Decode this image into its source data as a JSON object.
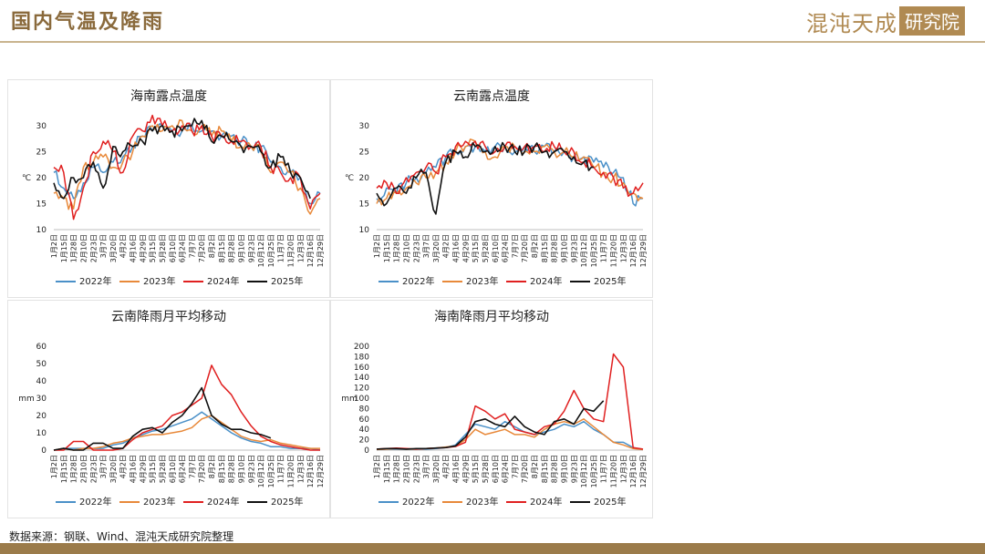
{
  "header": {
    "title": "国内气温及降雨",
    "logo_main": "混沌天成",
    "logo_box": "研究院"
  },
  "footer": {
    "source": "数据来源：钢联、Wind、混沌天成研究院整理"
  },
  "colors": {
    "y2022": "#4a90c8",
    "y2023": "#e8893a",
    "y2024": "#e02020",
    "y2025": "#111111"
  },
  "chart_data": [
    {
      "id": "hainan-dew",
      "type": "line",
      "title": "海南露点温度",
      "ylabel": "℃",
      "ylim": [
        10,
        30
      ],
      "yticks": [
        10,
        15,
        20,
        25,
        30
      ],
      "x": [
        "1月2日",
        "1月15日",
        "1月28日",
        "2月10日",
        "2月23日",
        "3月7日",
        "3月20日",
        "4月2日",
        "4月16日",
        "4月29日",
        "5月15日",
        "5月28日",
        "6月10日",
        "6月24日",
        "7月7日",
        "7月20日",
        "8月2日",
        "8月15日",
        "8月28日",
        "9月10日",
        "9月23日",
        "10月12日",
        "10月25日",
        "11月7日",
        "11月20日",
        "12月3日",
        "12月16日",
        "12月29日"
      ],
      "series": [
        {
          "name": "2022年",
          "values": [
            21,
            18,
            16,
            19,
            22,
            21,
            23,
            24,
            26,
            28,
            29,
            30,
            29,
            29,
            30,
            29,
            29,
            28,
            28,
            27,
            26,
            26,
            23,
            22,
            21,
            20,
            15,
            17
          ]
        },
        {
          "name": "2023年",
          "values": [
            17,
            16,
            14,
            22,
            23,
            24,
            22,
            23,
            25,
            28,
            30,
            29,
            30,
            31,
            29,
            30,
            28,
            29,
            27,
            26,
            26,
            25,
            21,
            23,
            21,
            18,
            13,
            16
          ]
        },
        {
          "name": "2024年",
          "values": [
            22,
            21,
            12,
            18,
            25,
            27,
            25,
            21,
            28,
            29,
            32,
            30,
            29,
            30,
            29,
            30,
            28,
            28,
            27,
            27,
            26,
            26,
            22,
            21,
            20,
            20,
            14,
            17
          ]
        },
        {
          "name": "2025年",
          "values": [
            19,
            16,
            20,
            20,
            23,
            18,
            26,
            25,
            26,
            27,
            29,
            30,
            29,
            29,
            30,
            31,
            27,
            28,
            27,
            26,
            26,
            25,
            22,
            24,
            21,
            20,
            16,
            null
          ]
        }
      ]
    },
    {
      "id": "yunnan-dew",
      "type": "line",
      "title": "云南露点温度",
      "ylabel": "℃",
      "ylim": [
        10,
        30
      ],
      "yticks": [
        10,
        15,
        20,
        25,
        30
      ],
      "x": [
        "1月2日",
        "1月15日",
        "1月28日",
        "2月10日",
        "2月23日",
        "3月7日",
        "3月20日",
        "4月2日",
        "4月16日",
        "4月29日",
        "5月15日",
        "5月28日",
        "6月10日",
        "6月24日",
        "7月7日",
        "7月20日",
        "8月2日",
        "8月15日",
        "8月28日",
        "9月10日",
        "9月23日",
        "10月12日",
        "10月25日",
        "11月7日",
        "11月20日",
        "12月3日",
        "12月16日",
        "12月29日"
      ],
      "series": [
        {
          "name": "2022年",
          "values": [
            16,
            18,
            17,
            19,
            20,
            21,
            22,
            24,
            25,
            26,
            26,
            25,
            26,
            26,
            25,
            26,
            25,
            26,
            25,
            25,
            24,
            24,
            23,
            22,
            21,
            20,
            15,
            16
          ]
        },
        {
          "name": "2023年",
          "values": [
            15,
            16,
            17,
            18,
            19,
            20,
            21,
            23,
            25,
            26,
            27,
            25,
            24,
            26,
            26,
            25,
            25,
            26,
            25,
            25,
            24,
            24,
            22,
            21,
            20,
            19,
            17,
            16
          ]
        },
        {
          "name": "2024年",
          "values": [
            18,
            19,
            17,
            20,
            21,
            22,
            21,
            24,
            26,
            27,
            27,
            26,
            25,
            26,
            26,
            26,
            26,
            25,
            26,
            25,
            25,
            23,
            22,
            21,
            20,
            18,
            17,
            19
          ]
        },
        {
          "name": "2025年",
          "values": [
            17,
            15,
            18,
            17,
            20,
            21,
            13,
            23,
            25,
            24,
            26,
            25,
            26,
            26,
            25,
            25,
            26,
            25,
            25,
            25,
            24,
            23,
            22,
            null,
            null,
            null,
            null,
            null
          ]
        }
      ]
    },
    {
      "id": "yunnan-rain",
      "type": "line",
      "title": "云南降雨月平均移动",
      "ylabel": "mm",
      "ylim": [
        0,
        60
      ],
      "yticks": [
        0,
        10,
        20,
        30,
        40,
        50,
        60
      ],
      "x": [
        "1月2日",
        "1月15日",
        "1月28日",
        "2月10日",
        "2月23日",
        "3月7日",
        "3月20日",
        "4月2日",
        "4月16日",
        "4月29日",
        "5月15日",
        "5月28日",
        "6月10日",
        "6月24日",
        "7月7日",
        "7月20日",
        "8月2日",
        "8月15日",
        "8月28日",
        "9月10日",
        "9月23日",
        "10月12日",
        "10月25日",
        "11月7日",
        "11月20日",
        "12月3日",
        "12月16日",
        "12月29日"
      ],
      "series": [
        {
          "name": "2022年",
          "values": [
            0,
            1,
            1,
            1,
            1,
            1,
            3,
            4,
            7,
            9,
            11,
            12,
            14,
            16,
            18,
            22,
            18,
            14,
            10,
            7,
            5,
            4,
            2,
            2,
            1,
            1,
            1,
            0
          ]
        },
        {
          "name": "2023年",
          "values": [
            0,
            1,
            0,
            1,
            1,
            2,
            4,
            5,
            7,
            8,
            9,
            9,
            10,
            11,
            13,
            18,
            20,
            16,
            12,
            8,
            6,
            5,
            6,
            4,
            3,
            2,
            1,
            1
          ]
        },
        {
          "name": "2024年",
          "values": [
            0,
            0,
            5,
            5,
            0,
            0,
            0,
            1,
            6,
            10,
            12,
            14,
            20,
            22,
            26,
            30,
            49,
            38,
            32,
            22,
            14,
            8,
            5,
            3,
            2,
            1,
            0,
            0
          ]
        },
        {
          "name": "2025年",
          "values": [
            0,
            1,
            0,
            0,
            4,
            4,
            1,
            1,
            8,
            12,
            13,
            10,
            16,
            20,
            27,
            36,
            20,
            15,
            12,
            12,
            10,
            9,
            7,
            null,
            null,
            null,
            null,
            null
          ]
        }
      ]
    },
    {
      "id": "hainan-rain",
      "type": "line",
      "title": "海南降雨月平均移动",
      "ylabel": "mm",
      "ylim": [
        0,
        200
      ],
      "yticks": [
        0,
        20,
        40,
        60,
        80,
        100,
        120,
        140,
        160,
        180,
        200
      ],
      "x": [
        "1月2日",
        "1月15日",
        "1月28日",
        "2月10日",
        "2月23日",
        "3月7日",
        "3月20日",
        "4月2日",
        "4月16日",
        "4月29日",
        "5月15日",
        "5月28日",
        "6月10日",
        "6月24日",
        "7月7日",
        "7月20日",
        "8月2日",
        "8月15日",
        "8月28日",
        "9月10日",
        "9月23日",
        "10月12日",
        "10月25日",
        "11月7日",
        "11月20日",
        "12月3日",
        "12月16日",
        "12月29日"
      ],
      "series": [
        {
          "name": "2022年",
          "values": [
            1,
            2,
            2,
            2,
            2,
            2,
            3,
            5,
            10,
            30,
            50,
            45,
            40,
            55,
            45,
            35,
            30,
            35,
            40,
            50,
            45,
            55,
            40,
            30,
            15,
            15,
            5,
            1
          ]
        },
        {
          "name": "2023年",
          "values": [
            1,
            2,
            3,
            2,
            2,
            3,
            4,
            6,
            8,
            20,
            40,
            30,
            35,
            40,
            30,
            30,
            25,
            40,
            50,
            55,
            50,
            60,
            45,
            30,
            15,
            10,
            3,
            1
          ]
        },
        {
          "name": "2024年",
          "values": [
            2,
            3,
            4,
            3,
            2,
            3,
            4,
            5,
            7,
            15,
            85,
            75,
            60,
            70,
            40,
            35,
            30,
            45,
            50,
            75,
            115,
            80,
            60,
            55,
            185,
            160,
            5,
            2
          ]
        },
        {
          "name": "2025年",
          "values": [
            2,
            3,
            3,
            2,
            3,
            3,
            4,
            5,
            8,
            25,
            55,
            60,
            50,
            45,
            65,
            45,
            35,
            30,
            55,
            60,
            50,
            80,
            75,
            95,
            null,
            null,
            null,
            null
          ]
        }
      ]
    }
  ]
}
